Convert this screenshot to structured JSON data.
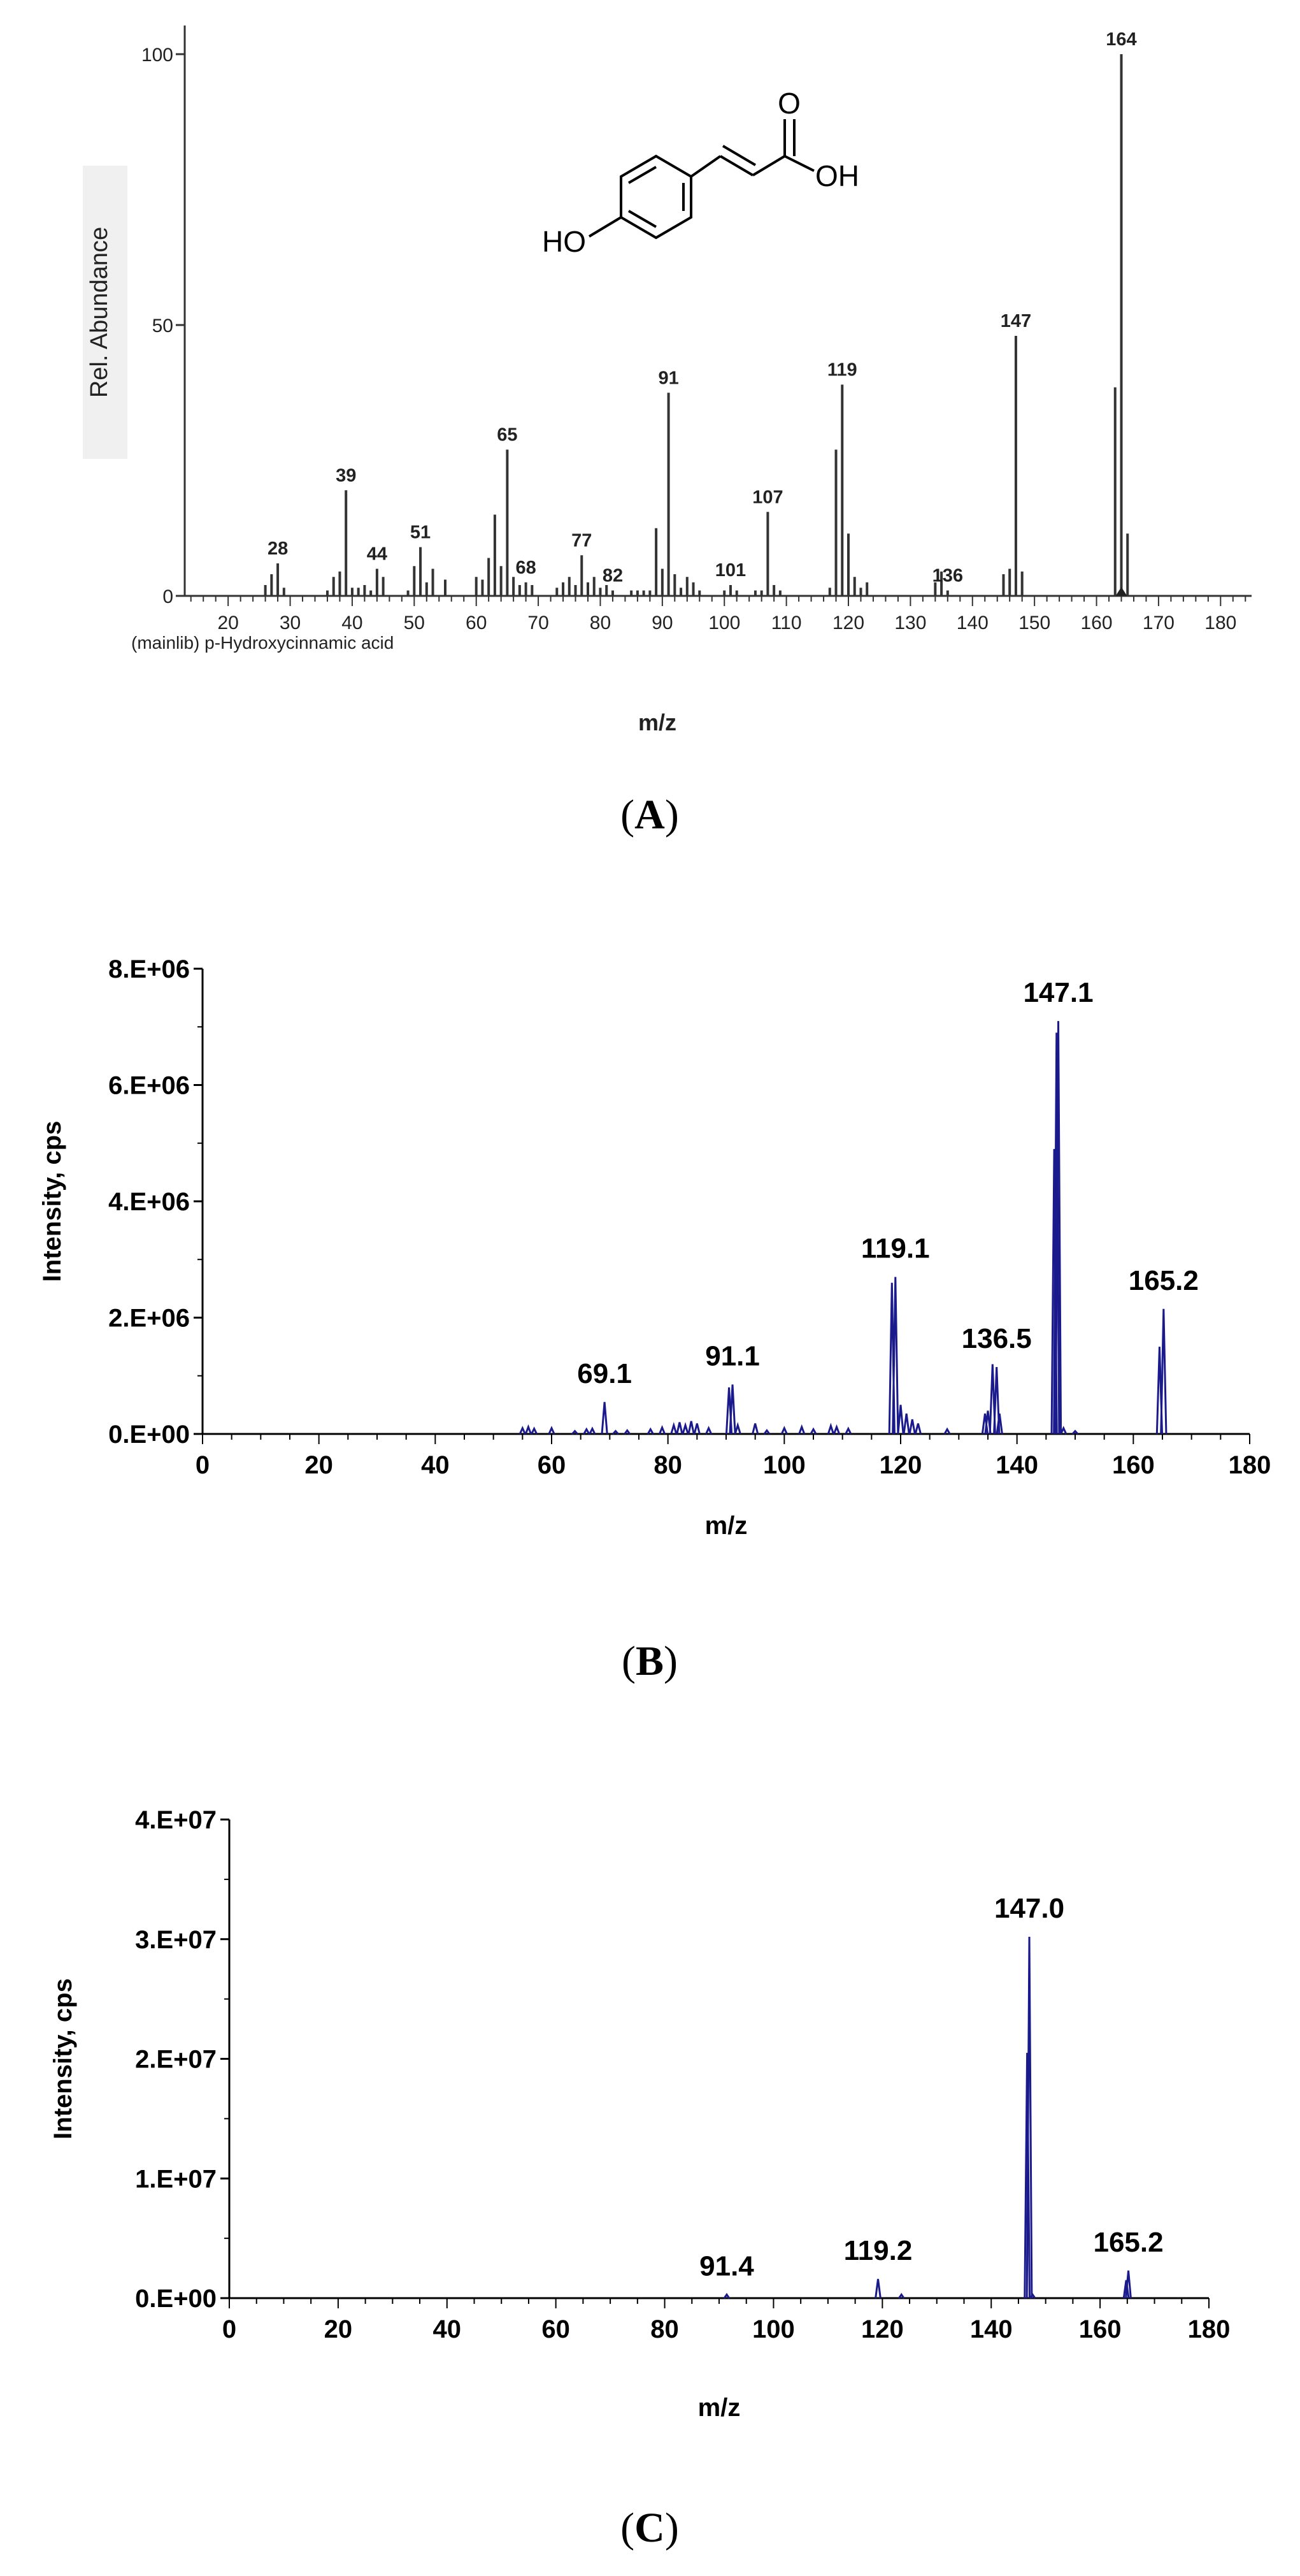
{
  "panels": [
    {
      "label_open": "(",
      "label_letter": "A",
      "label_close": ")"
    },
    {
      "label_open": "(",
      "label_letter": "B",
      "label_close": ")"
    },
    {
      "label_open": "(",
      "label_letter": "C",
      "label_close": ")"
    }
  ],
  "chart_data": [
    {
      "type": "bar",
      "panel": "A",
      "ylabel": "Rel. Abundance",
      "xlabel": "m/z",
      "caption": "(mainlib) p-Hydroxycinnamic acid",
      "xlim": [
        13,
        185
      ],
      "ylim": [
        0,
        100
      ],
      "x_ticks": [
        20,
        30,
        40,
        50,
        60,
        70,
        80,
        90,
        100,
        110,
        120,
        130,
        140,
        150,
        160,
        170,
        180
      ],
      "y_ticks": [
        0,
        50,
        100
      ],
      "structure": {
        "oxygen_label": "O",
        "acid_label": "OH",
        "phenol_label": "HO"
      },
      "bar_color": "#333333",
      "peaks": [
        {
          "x": 26,
          "y": 2
        },
        {
          "x": 27,
          "y": 4
        },
        {
          "x": 28,
          "y": 6,
          "label": "28"
        },
        {
          "x": 29,
          "y": 1.5
        },
        {
          "x": 36,
          "y": 1
        },
        {
          "x": 37,
          "y": 3.5
        },
        {
          "x": 38,
          "y": 4.5
        },
        {
          "x": 39,
          "y": 19.5,
          "label": "39"
        },
        {
          "x": 40,
          "y": 1.5
        },
        {
          "x": 41,
          "y": 1.5
        },
        {
          "x": 42,
          "y": 2
        },
        {
          "x": 43,
          "y": 1
        },
        {
          "x": 44,
          "y": 5,
          "label": "44"
        },
        {
          "x": 45,
          "y": 3.5
        },
        {
          "x": 49,
          "y": 1
        },
        {
          "x": 50,
          "y": 5.5
        },
        {
          "x": 51,
          "y": 9,
          "label": "51"
        },
        {
          "x": 52,
          "y": 2.5
        },
        {
          "x": 53,
          "y": 5
        },
        {
          "x": 55,
          "y": 3
        },
        {
          "x": 60,
          "y": 3.5
        },
        {
          "x": 61,
          "y": 3
        },
        {
          "x": 62,
          "y": 7
        },
        {
          "x": 63,
          "y": 15
        },
        {
          "x": 64,
          "y": 5.5
        },
        {
          "x": 65,
          "y": 27,
          "label": "65"
        },
        {
          "x": 66,
          "y": 3.5
        },
        {
          "x": 67,
          "y": 2
        },
        {
          "x": 68,
          "y": 2.5,
          "label": "68"
        },
        {
          "x": 69,
          "y": 2
        },
        {
          "x": 73,
          "y": 1.5
        },
        {
          "x": 74,
          "y": 2.5
        },
        {
          "x": 75,
          "y": 3.5
        },
        {
          "x": 76,
          "y": 2
        },
        {
          "x": 77,
          "y": 7.5,
          "label": "77"
        },
        {
          "x": 78,
          "y": 2.5
        },
        {
          "x": 79,
          "y": 3.5
        },
        {
          "x": 80,
          "y": 1.5
        },
        {
          "x": 81,
          "y": 2
        },
        {
          "x": 82,
          "y": 1,
          "label": "82"
        },
        {
          "x": 85,
          "y": 1
        },
        {
          "x": 86,
          "y": 1
        },
        {
          "x": 87,
          "y": 1
        },
        {
          "x": 88,
          "y": 1
        },
        {
          "x": 89,
          "y": 12.5
        },
        {
          "x": 90,
          "y": 5
        },
        {
          "x": 91,
          "y": 37.5,
          "label": "91"
        },
        {
          "x": 92,
          "y": 4
        },
        {
          "x": 93,
          "y": 1.5
        },
        {
          "x": 94,
          "y": 3.5
        },
        {
          "x": 95,
          "y": 2.5
        },
        {
          "x": 96,
          "y": 1
        },
        {
          "x": 100,
          "y": 1
        },
        {
          "x": 101,
          "y": 2,
          "label": "101"
        },
        {
          "x": 102,
          "y": 1
        },
        {
          "x": 105,
          "y": 1
        },
        {
          "x": 106,
          "y": 1
        },
        {
          "x": 107,
          "y": 15.5,
          "label": "107"
        },
        {
          "x": 108,
          "y": 2
        },
        {
          "x": 109,
          "y": 1
        },
        {
          "x": 117,
          "y": 1.5
        },
        {
          "x": 118,
          "y": 27
        },
        {
          "x": 119,
          "y": 39,
          "label": "119"
        },
        {
          "x": 120,
          "y": 11.5
        },
        {
          "x": 121,
          "y": 3.5
        },
        {
          "x": 122,
          "y": 1.5
        },
        {
          "x": 123,
          "y": 2.5
        },
        {
          "x": 134,
          "y": 2.5
        },
        {
          "x": 135,
          "y": 4.5
        },
        {
          "x": 136,
          "y": 1,
          "label": "136"
        },
        {
          "x": 145,
          "y": 4
        },
        {
          "x": 146,
          "y": 5
        },
        {
          "x": 147,
          "y": 48,
          "label": "147"
        },
        {
          "x": 148,
          "y": 4.5
        },
        {
          "x": 163,
          "y": 38.5
        },
        {
          "x": 164,
          "y": 100,
          "label": "164"
        },
        {
          "x": 165,
          "y": 11.5
        }
      ]
    },
    {
      "type": "line",
      "panel": "B",
      "ylabel": "Intensity, cps",
      "xlabel": "m/z",
      "xlim": [
        0,
        180
      ],
      "ylim": [
        0,
        8000000
      ],
      "x_ticks": [
        0,
        20,
        40,
        60,
        80,
        100,
        120,
        140,
        160,
        180
      ],
      "x_tick_labels": [
        "0",
        "20",
        "40",
        "60",
        "80",
        "100",
        "120",
        "140",
        "160",
        "180"
      ],
      "y_ticks": [
        0,
        2000000,
        4000000,
        6000000,
        8000000
      ],
      "y_tick_labels": [
        "0.E+00",
        "2.E+06",
        "4.E+06",
        "6.E+06",
        "8.E+06"
      ],
      "line_color": "#1a1a8c",
      "peaks": [
        {
          "x": 55,
          "y": 100000
        },
        {
          "x": 56,
          "y": 120000
        },
        {
          "x": 57,
          "y": 90000
        },
        {
          "x": 60,
          "y": 100000
        },
        {
          "x": 64,
          "y": 50000
        },
        {
          "x": 66,
          "y": 80000
        },
        {
          "x": 67,
          "y": 90000
        },
        {
          "x": 69.1,
          "y": 550000,
          "label": "69.1"
        },
        {
          "x": 71,
          "y": 50000
        },
        {
          "x": 73,
          "y": 60000
        },
        {
          "x": 77,
          "y": 80000
        },
        {
          "x": 79,
          "y": 110000
        },
        {
          "x": 81,
          "y": 150000
        },
        {
          "x": 82,
          "y": 200000
        },
        {
          "x": 83,
          "y": 150000
        },
        {
          "x": 84,
          "y": 220000
        },
        {
          "x": 85,
          "y": 180000
        },
        {
          "x": 87,
          "y": 100000
        },
        {
          "x": 90.5,
          "y": 800000
        },
        {
          "x": 91.1,
          "y": 850000,
          "label": "91.1"
        },
        {
          "x": 92,
          "y": 150000
        },
        {
          "x": 95,
          "y": 180000
        },
        {
          "x": 97,
          "y": 60000
        },
        {
          "x": 100,
          "y": 100000
        },
        {
          "x": 103,
          "y": 120000
        },
        {
          "x": 105,
          "y": 80000
        },
        {
          "x": 108,
          "y": 140000
        },
        {
          "x": 109,
          "y": 120000
        },
        {
          "x": 111,
          "y": 90000
        },
        {
          "x": 118.5,
          "y": 2600000
        },
        {
          "x": 119.1,
          "y": 2700000,
          "label": "119.1"
        },
        {
          "x": 120,
          "y": 500000
        },
        {
          "x": 121,
          "y": 350000
        },
        {
          "x": 122,
          "y": 250000
        },
        {
          "x": 123,
          "y": 180000
        },
        {
          "x": 128,
          "y": 80000
        },
        {
          "x": 134.5,
          "y": 350000
        },
        {
          "x": 135,
          "y": 400000
        },
        {
          "x": 135.8,
          "y": 1200000
        },
        {
          "x": 136.5,
          "y": 1150000,
          "label": "136.5"
        },
        {
          "x": 137,
          "y": 350000
        },
        {
          "x": 146.4,
          "y": 4900000
        },
        {
          "x": 146.8,
          "y": 6900000
        },
        {
          "x": 147.1,
          "y": 7100000,
          "label": "147.1"
        },
        {
          "x": 148,
          "y": 100000
        },
        {
          "x": 150,
          "y": 50000
        },
        {
          "x": 164.5,
          "y": 1500000
        },
        {
          "x": 165.2,
          "y": 2150000,
          "label": "165.2"
        }
      ]
    },
    {
      "type": "line",
      "panel": "C",
      "ylabel": "Intensity, cps",
      "xlabel": "m/z",
      "xlim": [
        0,
        180
      ],
      "ylim": [
        0,
        40000000
      ],
      "x_ticks": [
        0,
        20,
        40,
        60,
        80,
        100,
        120,
        140,
        160,
        180
      ],
      "x_tick_labels": [
        "0",
        "20",
        "40",
        "60",
        "80",
        "100",
        "120",
        "140",
        "160",
        "180"
      ],
      "y_ticks": [
        0,
        10000000,
        20000000,
        30000000,
        40000000
      ],
      "y_tick_labels": [
        "0.E+00",
        "1.E+07",
        "2.E+07",
        "3.E+07",
        "4.E+07"
      ],
      "line_color": "#1a1a8c",
      "peaks": [
        {
          "x": 91.4,
          "y": 300000,
          "label": "91.4"
        },
        {
          "x": 119.2,
          "y": 1600000,
          "label": "119.2"
        },
        {
          "x": 123.5,
          "y": 300000
        },
        {
          "x": 146.6,
          "y": 20500000
        },
        {
          "x": 147.0,
          "y": 30200000,
          "label": "147.0"
        },
        {
          "x": 147.6,
          "y": 300000
        },
        {
          "x": 164.8,
          "y": 1500000
        },
        {
          "x": 165.2,
          "y": 2300000,
          "label": "165.2"
        }
      ]
    }
  ]
}
